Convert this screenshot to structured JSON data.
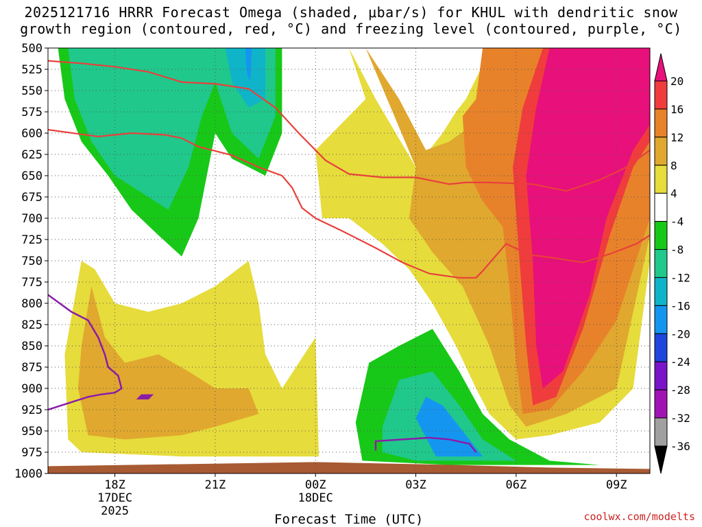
{
  "chart_data": {
    "type": "heatmap",
    "title_line1": "2025121716 HRRR Forecast Omega (shaded, μbar/s) for KHUL with dendritic snow",
    "title_line2": "growth region (contoured, red, °C) and freezing level (contoured, purple, °C)",
    "xlabel": "Forecast Time (UTC)",
    "ylabel": "",
    "credit": "coolwx.com/modelts",
    "x_ticks": [
      {
        "hour": 18,
        "label": "18Z",
        "sub1": "17DEC",
        "sub2": "2025"
      },
      {
        "hour": 21,
        "label": "21Z",
        "sub1": "",
        "sub2": ""
      },
      {
        "hour": 24,
        "label": "00Z",
        "sub1": "18DEC",
        "sub2": ""
      },
      {
        "hour": 27,
        "label": "03Z",
        "sub1": "",
        "sub2": ""
      },
      {
        "hour": 30,
        "label": "06Z",
        "sub1": "",
        "sub2": ""
      },
      {
        "hour": 33,
        "label": "09Z",
        "sub1": "",
        "sub2": ""
      }
    ],
    "xlim": [
      16,
      34
    ],
    "ylim": [
      1000,
      500
    ],
    "y_ticks": [
      500,
      525,
      550,
      575,
      600,
      625,
      650,
      675,
      700,
      725,
      750,
      775,
      800,
      825,
      850,
      875,
      900,
      925,
      950,
      975,
      1000
    ],
    "colorbar": {
      "labels": [
        "20",
        "16",
        "12",
        "8",
        "4",
        "-4",
        "-8",
        "-12",
        "-16",
        "-20",
        "-24",
        "-28",
        "-32",
        "-36"
      ],
      "colors": [
        "#e8107a",
        "#f03c3c",
        "#e8822a",
        "#e0a82e",
        "#e6dc3c",
        "#ffffff",
        "#18c818",
        "#20c88c",
        "#10b4c8",
        "#1496f0",
        "#1e46dc",
        "#7a14c8",
        "#a014b4",
        "#a0a0a0"
      ]
    },
    "omega_regions": [
      {
        "name": "upper-left-ascent",
        "value_range": [
          -12,
          -4
        ],
        "color": "#18c818",
        "points": [
          [
            16.3,
            500
          ],
          [
            16.5,
            560
          ],
          [
            17.0,
            610
          ],
          [
            17.8,
            650
          ],
          [
            18.5,
            690
          ],
          [
            19.3,
            720
          ],
          [
            20.0,
            745
          ],
          [
            20.5,
            700
          ],
          [
            20.8,
            640
          ],
          [
            21.0,
            600
          ],
          [
            21.5,
            630
          ],
          [
            22.5,
            650
          ],
          [
            23.0,
            600
          ],
          [
            23.0,
            500
          ]
        ]
      },
      {
        "name": "upper-left-core",
        "value_range": [
          -12,
          -8
        ],
        "color": "#20c88c",
        "points": [
          [
            16.6,
            500
          ],
          [
            16.8,
            560
          ],
          [
            17.3,
            610
          ],
          [
            18.0,
            650
          ],
          [
            18.8,
            670
          ],
          [
            19.6,
            690
          ],
          [
            20.2,
            640
          ],
          [
            20.6,
            580
          ],
          [
            21.0,
            540
          ],
          [
            21.5,
            600
          ],
          [
            22.3,
            630
          ],
          [
            22.8,
            580
          ],
          [
            22.8,
            500
          ]
        ]
      },
      {
        "name": "upper-cyan",
        "value_range": [
          -16,
          -12
        ],
        "color": "#10b4c8",
        "points": [
          [
            21.3,
            500
          ],
          [
            21.5,
            540
          ],
          [
            22.0,
            570
          ],
          [
            22.5,
            560
          ],
          [
            22.5,
            500
          ]
        ]
      },
      {
        "name": "upper-blue",
        "value_range": [
          -20,
          -16
        ],
        "color": "#1496f0",
        "points": [
          [
            21.9,
            500
          ],
          [
            21.95,
            530
          ],
          [
            22.05,
            540
          ],
          [
            22.1,
            500
          ]
        ]
      },
      {
        "name": "lower-ascent",
        "value_range": [
          -8,
          -4
        ],
        "color": "#18c818",
        "points": [
          [
            25.2,
            940
          ],
          [
            25.6,
            870
          ],
          [
            26.5,
            850
          ],
          [
            27.5,
            830
          ],
          [
            28.3,
            880
          ],
          [
            29.0,
            930
          ],
          [
            29.8,
            960
          ],
          [
            31.0,
            985
          ],
          [
            32.5,
            990
          ],
          [
            28.0,
            990
          ],
          [
            25.4,
            985
          ]
        ]
      },
      {
        "name": "lower-core",
        "value_range": [
          -12,
          -8
        ],
        "color": "#20c88c",
        "points": [
          [
            26.0,
            945
          ],
          [
            26.5,
            890
          ],
          [
            27.5,
            880
          ],
          [
            28.3,
            920
          ],
          [
            29.0,
            960
          ],
          [
            30.0,
            985
          ],
          [
            27.0,
            985
          ],
          [
            26.0,
            975
          ]
        ]
      },
      {
        "name": "lower-blue",
        "value_range": [
          -16,
          -12
        ],
        "color": "#1496f0",
        "points": [
          [
            27.0,
            935
          ],
          [
            27.3,
            910
          ],
          [
            27.8,
            920
          ],
          [
            28.4,
            950
          ],
          [
            29.0,
            980
          ],
          [
            27.6,
            980
          ]
        ]
      },
      {
        "name": "descent-yellow",
        "value_range": [
          4,
          8
        ],
        "color": "#e6dc3c",
        "points": [
          [
            25.0,
            500
          ],
          [
            25.8,
            560
          ],
          [
            27.0,
            640
          ],
          [
            27.8,
            600
          ],
          [
            28.2,
            575
          ],
          [
            28.5,
            560
          ],
          [
            29.0,
            520
          ],
          [
            29.3,
            500
          ],
          [
            34.0,
            500
          ],
          [
            34.0,
            750
          ],
          [
            33.5,
            900
          ],
          [
            32.5,
            940
          ],
          [
            31.0,
            955
          ],
          [
            30.0,
            960
          ],
          [
            29.2,
            930
          ],
          [
            28.8,
            900
          ],
          [
            28.2,
            850
          ],
          [
            27.5,
            800
          ],
          [
            26.8,
            760
          ],
          [
            26.0,
            730
          ],
          [
            25.0,
            700
          ],
          [
            24.2,
            700
          ],
          [
            24.0,
            620
          ],
          [
            24.5,
            600
          ],
          [
            25.5,
            560
          ]
        ]
      },
      {
        "name": "descent-orange",
        "value_range": [
          8,
          12
        ],
        "color": "#e0a82e",
        "points": [
          [
            25.5,
            500
          ],
          [
            26.5,
            560
          ],
          [
            27.3,
            620
          ],
          [
            28.0,
            610
          ],
          [
            28.7,
            590
          ],
          [
            29.3,
            560
          ],
          [
            29.8,
            500
          ],
          [
            34.0,
            500
          ],
          [
            34.0,
            720
          ],
          [
            33.0,
            900
          ],
          [
            31.5,
            930
          ],
          [
            30.3,
            945
          ],
          [
            29.8,
            920
          ],
          [
            29.2,
            850
          ],
          [
            28.4,
            780
          ],
          [
            27.5,
            740
          ],
          [
            26.8,
            700
          ],
          [
            27.0,
            640
          ]
        ]
      },
      {
        "name": "descent-dark-orange",
        "value_range": [
          12,
          16
        ],
        "color": "#e8822a",
        "points": [
          [
            29.0,
            500
          ],
          [
            28.8,
            560
          ],
          [
            28.4,
            580
          ],
          [
            28.5,
            640
          ],
          [
            29.0,
            680
          ],
          [
            29.6,
            710
          ],
          [
            29.8,
            780
          ],
          [
            30.0,
            870
          ],
          [
            30.2,
            930
          ],
          [
            31.0,
            925
          ],
          [
            32.0,
            880
          ],
          [
            33.0,
            820
          ],
          [
            34.0,
            700
          ],
          [
            34.0,
            500
          ]
        ]
      },
      {
        "name": "descent-red",
        "value_range": [
          16,
          20
        ],
        "color": "#f03c3c",
        "points": [
          [
            30.8,
            500
          ],
          [
            30.2,
            570
          ],
          [
            29.9,
            640
          ],
          [
            30.1,
            750
          ],
          [
            30.3,
            850
          ],
          [
            30.5,
            920
          ],
          [
            31.2,
            910
          ],
          [
            32.0,
            830
          ],
          [
            32.8,
            720
          ],
          [
            33.5,
            640
          ],
          [
            34.0,
            610
          ],
          [
            34.0,
            500
          ]
        ]
      },
      {
        "name": "descent-magenta",
        "value_range": [
          20,
          24
        ],
        "color": "#e8107a",
        "points": [
          [
            31.0,
            500
          ],
          [
            30.6,
            570
          ],
          [
            30.3,
            650
          ],
          [
            30.5,
            750
          ],
          [
            30.6,
            850
          ],
          [
            30.8,
            900
          ],
          [
            31.4,
            880
          ],
          [
            32.2,
            790
          ],
          [
            32.7,
            700
          ],
          [
            33.5,
            620
          ],
          [
            34.0,
            590
          ],
          [
            34.0,
            500
          ]
        ]
      },
      {
        "name": "lower-left-yellow",
        "value_range": [
          4,
          8
        ],
        "color": "#e6dc3c",
        "points": [
          [
            16.5,
            860
          ],
          [
            17.0,
            750
          ],
          [
            17.4,
            760
          ],
          [
            18.0,
            800
          ],
          [
            19.0,
            810
          ],
          [
            20.0,
            800
          ],
          [
            21.0,
            780
          ],
          [
            22.0,
            750
          ],
          [
            22.3,
            800
          ],
          [
            22.5,
            860
          ],
          [
            23.0,
            900
          ],
          [
            24.0,
            840
          ],
          [
            24.1,
            980
          ],
          [
            20.0,
            980
          ],
          [
            17.0,
            975
          ],
          [
            16.6,
            960
          ]
        ]
      },
      {
        "name": "lower-left-orange",
        "value_range": [
          8,
          12
        ],
        "color": "#e0a82e",
        "points": [
          [
            16.9,
            900
          ],
          [
            17.0,
            850
          ],
          [
            17.3,
            780
          ],
          [
            17.7,
            840
          ],
          [
            18.3,
            870
          ],
          [
            19.3,
            860
          ],
          [
            20.2,
            880
          ],
          [
            21.0,
            900
          ],
          [
            22.0,
            900
          ],
          [
            22.3,
            930
          ],
          [
            21.0,
            945
          ],
          [
            20.0,
            955
          ],
          [
            18.3,
            960
          ],
          [
            17.2,
            955
          ]
        ]
      }
    ],
    "ground": {
      "color": "#a85a32",
      "pressure": 985
    },
    "dendritic_contours": [
      {
        "name": "dgz-upper",
        "color": "#e8403c",
        "points": [
          [
            16.0,
            515
          ],
          [
            17.0,
            518
          ],
          [
            18.0,
            522
          ],
          [
            19.0,
            528
          ],
          [
            20.0,
            540
          ],
          [
            21.0,
            542
          ],
          [
            22.0,
            548
          ],
          [
            22.8,
            570
          ],
          [
            23.5,
            600
          ],
          [
            24.3,
            632
          ],
          [
            25.0,
            648
          ],
          [
            26.0,
            652
          ],
          [
            27.0,
            652
          ],
          [
            28.0,
            660
          ],
          [
            28.5,
            658
          ],
          [
            29.2,
            658
          ],
          [
            30.5,
            660
          ],
          [
            31.5,
            668
          ],
          [
            32.5,
            655
          ],
          [
            33.3,
            640
          ],
          [
            34.0,
            620
          ]
        ]
      },
      {
        "name": "dgz-lower",
        "color": "#e8403c",
        "points": [
          [
            16.0,
            596
          ],
          [
            17.5,
            604
          ],
          [
            18.5,
            600
          ],
          [
            19.5,
            602
          ],
          [
            20.0,
            606
          ],
          [
            20.5,
            616
          ],
          [
            21.5,
            626
          ],
          [
            22.3,
            640
          ],
          [
            23.0,
            650
          ],
          [
            23.3,
            664
          ],
          [
            23.6,
            688
          ],
          [
            24.0,
            700
          ],
          [
            24.8,
            715
          ],
          [
            25.8,
            735
          ],
          [
            26.6,
            752
          ],
          [
            27.4,
            765
          ],
          [
            28.3,
            770
          ],
          [
            28.8,
            770
          ],
          [
            29.0,
            762
          ],
          [
            29.7,
            730
          ],
          [
            30.4,
            743
          ],
          [
            31.0,
            746
          ],
          [
            32.0,
            752
          ],
          [
            32.8,
            742
          ],
          [
            33.6,
            730
          ],
          [
            34.0,
            720
          ]
        ]
      }
    ],
    "freezing_contours": [
      {
        "name": "freezing-left",
        "color": "#8a1ca8",
        "points": [
          [
            16.0,
            790
          ],
          [
            16.7,
            810
          ],
          [
            17.2,
            820
          ],
          [
            17.5,
            840
          ],
          [
            17.7,
            860
          ],
          [
            17.8,
            875
          ],
          [
            18.1,
            885
          ],
          [
            18.2,
            900
          ],
          [
            18.0,
            905
          ],
          [
            17.6,
            907
          ],
          [
            17.2,
            910
          ],
          [
            16.8,
            915
          ],
          [
            16.0,
            925
          ]
        ]
      },
      {
        "name": "freezing-loop",
        "color": "#8a1ca8",
        "points": [
          [
            18.8,
            908
          ],
          [
            19.1,
            908
          ],
          [
            19.0,
            912
          ],
          [
            18.7,
            912
          ]
        ]
      },
      {
        "name": "freezing-low",
        "color": "#8a1ca8",
        "points": [
          [
            25.8,
            973
          ],
          [
            25.8,
            962
          ],
          [
            26.6,
            960
          ],
          [
            27.4,
            958
          ],
          [
            28.0,
            960
          ],
          [
            28.6,
            965
          ],
          [
            28.8,
            975
          ]
        ]
      }
    ]
  }
}
